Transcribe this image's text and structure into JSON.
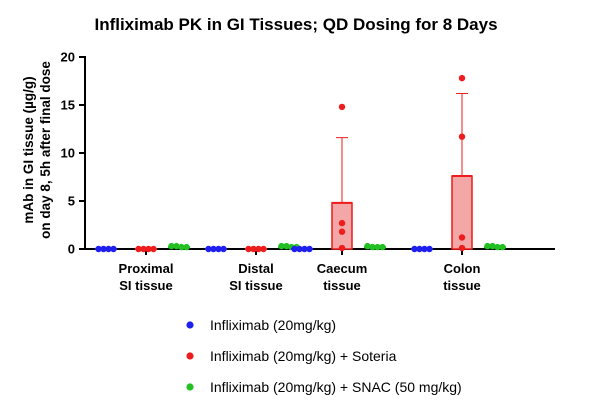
{
  "chart_data": {
    "type": "bar",
    "title": "Infliximab PK in GI Tissues; QD Dosing for 8 Days",
    "ylabel_lines": [
      "mAb in GI tissue (µg/g)",
      "on day 8, 5h after final dose"
    ],
    "ylim": [
      0,
      20
    ],
    "yticks": [
      "0",
      "5",
      "10",
      "15",
      "20"
    ],
    "categories": [
      [
        "Proximal",
        "SI tissue"
      ],
      [
        "Distal",
        "SI tissue"
      ],
      [
        "Caecum",
        "tissue"
      ],
      [
        "Colon",
        "tissue"
      ]
    ],
    "legend_position": "bottom",
    "grid": false,
    "series": [
      {
        "name": "Infliximab (20mg/kg)",
        "color": "#1f1ff0",
        "means": [
          0,
          0,
          0,
          0
        ],
        "sd": [
          0,
          0,
          0,
          0
        ],
        "points": [
          [
            0,
            0,
            0,
            0
          ],
          [
            0,
            0,
            0,
            0
          ],
          [
            0,
            0,
            0,
            0
          ],
          [
            0,
            0,
            0,
            0
          ]
        ]
      },
      {
        "name": "Infliximab (20mg/kg) + Soteria",
        "color": "#ee1c1c",
        "bar_fill": "#f4a7a7",
        "means": [
          0,
          0,
          4.8,
          7.6
        ],
        "sd": [
          0,
          0,
          6.8,
          8.6
        ],
        "points": [
          [
            0,
            0,
            0,
            0
          ],
          [
            0,
            0,
            0,
            0
          ],
          [
            14.8,
            2.7,
            1.8,
            0.1
          ],
          [
            17.8,
            11.7,
            1.2,
            0.1
          ]
        ]
      },
      {
        "name": "Infliximab (20mg/kg) + SNAC (50 mg/kg)",
        "color": "#22c022",
        "means": [
          0.2,
          0.2,
          0.2,
          0.2
        ],
        "sd": [
          0,
          0,
          0,
          0
        ],
        "points": [
          [
            0.3,
            0.3,
            0.2,
            0.2
          ],
          [
            0.3,
            0.3,
            0.2,
            0.2
          ],
          [
            0.3,
            0.2,
            0.2,
            0.2
          ],
          [
            0.3,
            0.3,
            0.2,
            0.2
          ]
        ]
      }
    ]
  }
}
